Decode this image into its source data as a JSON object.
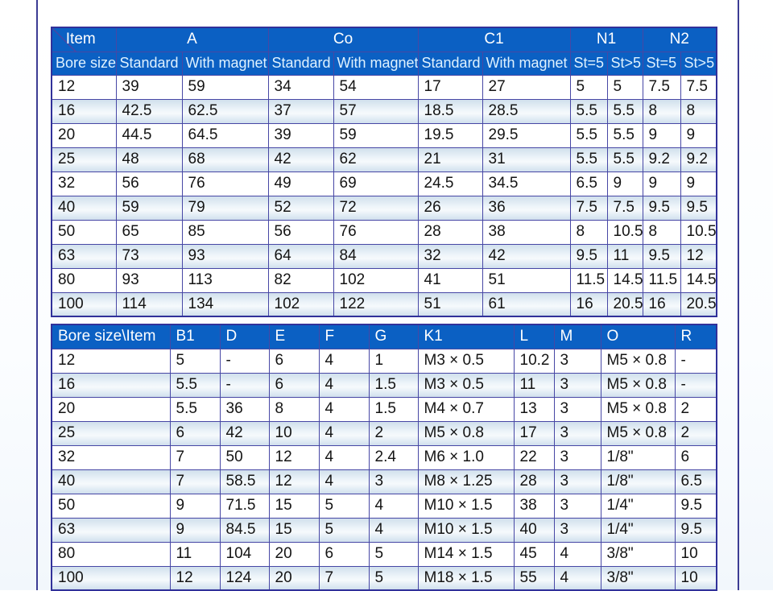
{
  "table1": {
    "corner": {
      "top_label": "Item",
      "bottom_label": "Bore size"
    },
    "groups": [
      {
        "label": "A",
        "cols": [
          "Standard",
          "With magnet"
        ]
      },
      {
        "label": "Co",
        "cols": [
          "Standard",
          "With magnet"
        ]
      },
      {
        "label": "C1",
        "cols": [
          "Standard",
          "With magnet"
        ]
      },
      {
        "label": "N1",
        "cols": [
          "St=5",
          "St>5"
        ]
      },
      {
        "label": "N2",
        "cols": [
          "St=5",
          "St>5"
        ]
      }
    ],
    "rows": [
      [
        "12",
        "39",
        "59",
        "34",
        "54",
        "17",
        "27",
        "5",
        "5",
        "7.5",
        "7.5"
      ],
      [
        "16",
        "42.5",
        "62.5",
        "37",
        "57",
        "18.5",
        "28.5",
        "5.5",
        "5.5",
        "8",
        "8"
      ],
      [
        "20",
        "44.5",
        "64.5",
        "39",
        "59",
        "19.5",
        "29.5",
        "5.5",
        "5.5",
        "9",
        "9"
      ],
      [
        "25",
        "48",
        "68",
        "42",
        "62",
        "21",
        "31",
        "5.5",
        "5.5",
        "9.2",
        "9.2"
      ],
      [
        "32",
        "56",
        "76",
        "49",
        "69",
        "24.5",
        "34.5",
        "6.5",
        "9",
        "9",
        "9"
      ],
      [
        "40",
        "59",
        "79",
        "52",
        "72",
        "26",
        "36",
        "7.5",
        "7.5",
        "9.5",
        "9.5"
      ],
      [
        "50",
        "65",
        "85",
        "56",
        "76",
        "28",
        "38",
        "8",
        "10.5",
        "8",
        "10.5"
      ],
      [
        "63",
        "73",
        "93",
        "64",
        "84",
        "32",
        "42",
        "9.5",
        "11",
        "9.5",
        "12"
      ],
      [
        "80",
        "93",
        "113",
        "82",
        "102",
        "41",
        "51",
        "11.5",
        "14.5",
        "11.5",
        "14.5"
      ],
      [
        "100",
        "114",
        "134",
        "102",
        "122",
        "51",
        "61",
        "16",
        "20.5",
        "16",
        "20.5"
      ]
    ]
  },
  "table2": {
    "headers": [
      "Bore size\\Item",
      "B1",
      "D",
      "E",
      "F",
      "G",
      "K1",
      "L",
      "M",
      "O",
      "R"
    ],
    "rows": [
      [
        "12",
        "5",
        "-",
        "6",
        "4",
        "1",
        "M3 × 0.5",
        "10.2",
        "3",
        "M5 × 0.8",
        "-"
      ],
      [
        "16",
        "5.5",
        "-",
        "6",
        "4",
        "1.5",
        "M3 × 0.5",
        "11",
        "3",
        "M5 × 0.8",
        "-"
      ],
      [
        "20",
        "5.5",
        "36",
        "8",
        "4",
        "1.5",
        "M4 × 0.7",
        "13",
        "3",
        "M5 × 0.8",
        "2"
      ],
      [
        "25",
        "6",
        "42",
        "10",
        "4",
        "2",
        "M5 × 0.8",
        "17",
        "3",
        "M5 × 0.8",
        "2"
      ],
      [
        "32",
        "7",
        "50",
        "12",
        "4",
        "2.4",
        "M6 × 1.0",
        "22",
        "3",
        "1/8\"",
        "6"
      ],
      [
        "40",
        "7",
        "58.5",
        "12",
        "4",
        "3",
        "M8 × 1.25",
        "28",
        "3",
        "1/8\"",
        "6.5"
      ],
      [
        "50",
        "9",
        "71.5",
        "15",
        "5",
        "4",
        "M10 × 1.5",
        "38",
        "3",
        "1/4\"",
        "9.5"
      ],
      [
        "63",
        "9",
        "84.5",
        "15",
        "5",
        "4",
        "M10 × 1.5",
        "40",
        "3",
        "1/4\"",
        "9.5"
      ],
      [
        "80",
        "11",
        "104",
        "20",
        "6",
        "5",
        "M14 × 1.5",
        "45",
        "4",
        "3/8\"",
        "10"
      ],
      [
        "100",
        "12",
        "124",
        "20",
        "7",
        "5",
        "M18 × 1.5",
        "55",
        "4",
        "3/8\"",
        "10"
      ]
    ]
  }
}
